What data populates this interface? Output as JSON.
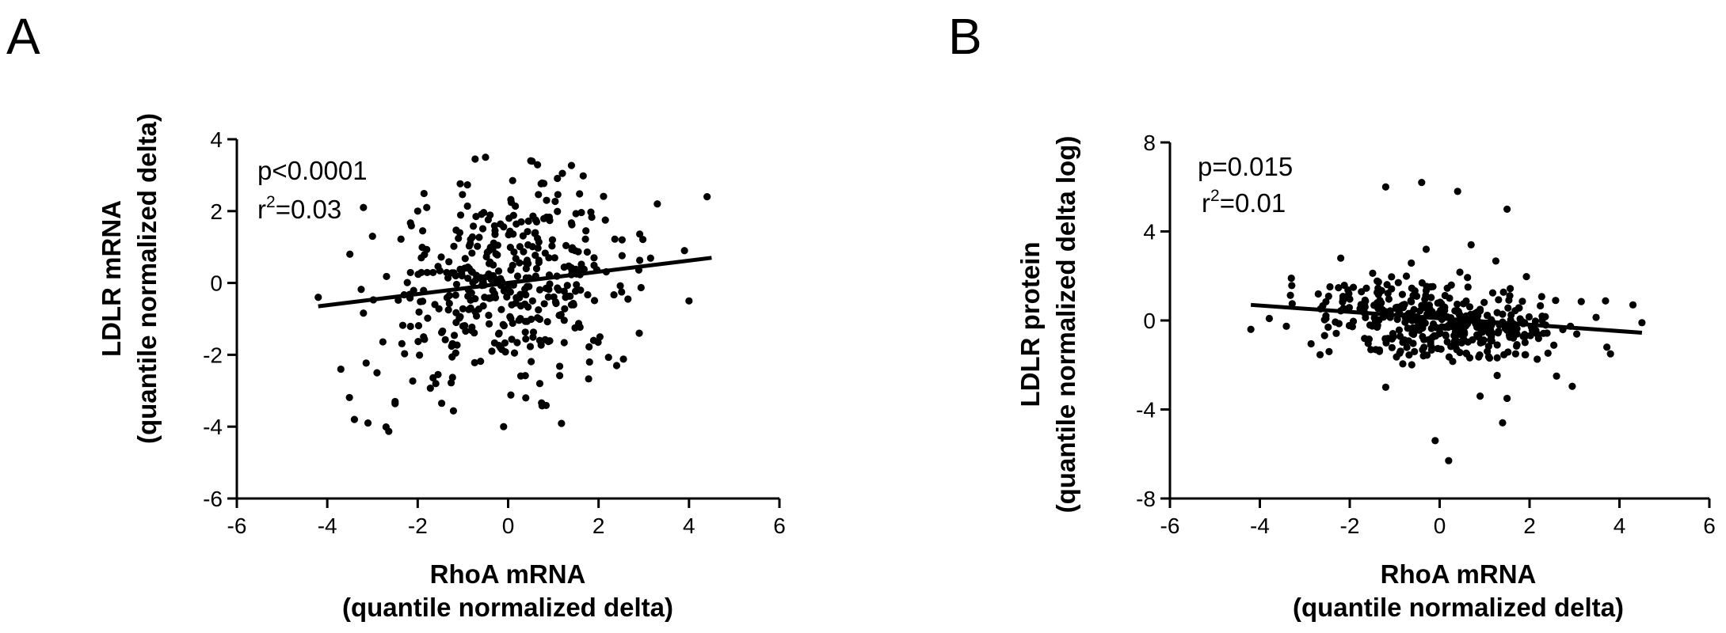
{
  "chart_data": [
    {
      "type": "scatter",
      "panel_label": "A",
      "xlabel_line1": "RhoA mRNA",
      "xlabel_line2": "(quantile normalized delta)",
      "ylabel_line1": "LDLR mRNA",
      "ylabel_line2": "(quantile normalized delta)",
      "xlim": [
        -6,
        6
      ],
      "ylim": [
        -6,
        4
      ],
      "xticks": [
        "-6",
        "-4",
        "-2",
        "0",
        "2",
        "4",
        "6"
      ],
      "yticks": [
        "4",
        "2",
        "0",
        "-2",
        "-4",
        "-6"
      ],
      "stat_p": "p<0.0001",
      "stat_r_prefix": "r",
      "stat_r_sup": "2",
      "stat_r_value": "=0.03",
      "fit_line": {
        "x": [
          -4.2,
          4.5
        ],
        "y": [
          -0.65,
          0.7
        ]
      },
      "point_color": "#000000",
      "x_mean": 0.0,
      "x_sd": 1.35,
      "y_mean": 0.0,
      "y_sd": 1.3,
      "point_count": 430,
      "points": [
        [
          -3.4,
          -3.8
        ],
        [
          -3.1,
          -3.9
        ],
        [
          -3.2,
          2.1
        ],
        [
          -0.5,
          3.5
        ],
        [
          1.2,
          3.05
        ],
        [
          3.3,
          2.2
        ],
        [
          4.4,
          2.4
        ],
        [
          4.0,
          -0.5
        ],
        [
          -0.1,
          -4.0
        ],
        [
          -2.5,
          -3.3
        ],
        [
          -3.7,
          -2.4
        ],
        [
          -3.5,
          0.8
        ],
        [
          -1.6,
          -2.8
        ],
        [
          0.7,
          -2.8
        ],
        [
          1.8,
          -2.2
        ],
        [
          2.4,
          -2.3
        ],
        [
          -4.2,
          -0.4
        ],
        [
          3.9,
          0.9
        ],
        [
          2.9,
          -1.4
        ],
        [
          -2.9,
          -2.5
        ],
        [
          -3.0,
          1.3
        ],
        [
          -2.0,
          2.0
        ],
        [
          -1.8,
          2.1
        ]
      ]
    },
    {
      "type": "scatter",
      "panel_label": "B",
      "xlabel_line1": "RhoA mRNA",
      "xlabel_line2": "(quantile normalized delta)",
      "ylabel_line1": "LDLR protein",
      "ylabel_line2": "(quantile normalized delta log)",
      "xlim": [
        -6,
        6
      ],
      "ylim": [
        -8,
        8
      ],
      "xticks": [
        "-6",
        "-4",
        "-2",
        "0",
        "2",
        "4",
        "6"
      ],
      "yticks": [
        "8",
        "4",
        "0",
        "-4",
        "-8"
      ],
      "stat_p": "p=0.015",
      "stat_r_prefix": "r",
      "stat_r_sup": "2",
      "stat_r_value": "=0.01",
      "fit_line": {
        "x": [
          -4.2,
          4.5
        ],
        "y": [
          0.7,
          -0.55
        ]
      },
      "point_color": "#000000",
      "x_mean": 0.0,
      "x_sd": 1.35,
      "y_mean": 0.0,
      "y_sd": 0.9,
      "point_count": 430,
      "points": [
        [
          -1.2,
          6.0
        ],
        [
          -0.4,
          6.2
        ],
        [
          0.4,
          5.8
        ],
        [
          1.5,
          5.0
        ],
        [
          -0.1,
          -5.4
        ],
        [
          0.2,
          -6.3
        ],
        [
          1.4,
          -4.6
        ],
        [
          -1.2,
          -3.0
        ],
        [
          0.9,
          -3.4
        ],
        [
          -4.2,
          -0.4
        ],
        [
          4.5,
          -0.1
        ],
        [
          4.3,
          0.7
        ],
        [
          -2.2,
          2.8
        ],
        [
          2.6,
          -2.5
        ],
        [
          3.8,
          -1.5
        ],
        [
          -3.3,
          1.9
        ],
        [
          -0.3,
          3.2
        ],
        [
          0.7,
          3.4
        ],
        [
          1.5,
          -3.5
        ]
      ]
    }
  ]
}
